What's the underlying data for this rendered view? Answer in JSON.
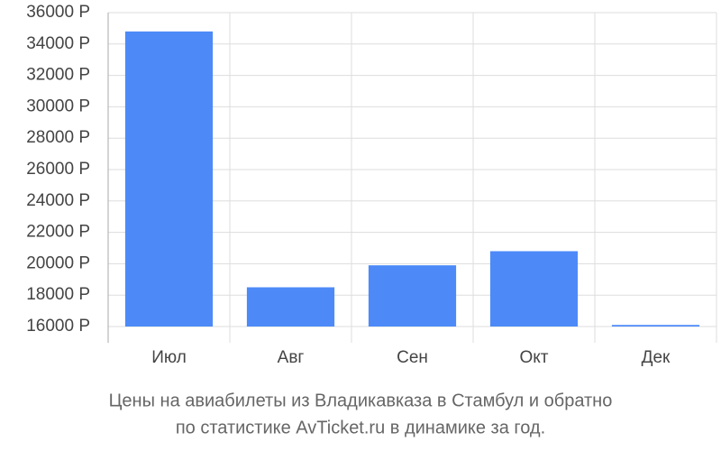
{
  "chart_data": {
    "type": "bar",
    "caption": [
      "Цены на авиабилеты из Владикавказа в Стамбул и обратно",
      "по статистике AvTicket.ru в динамике за год."
    ],
    "categories": [
      "Июл",
      "Авг",
      "Сен",
      "Окт",
      "Дек"
    ],
    "values": [
      34800,
      18500,
      19900,
      20800,
      16100
    ],
    "color": "#4d8af8",
    "ylim": [
      16000,
      36000
    ],
    "yticks": [
      {
        "value": 16000,
        "label": "16000 Р"
      },
      {
        "value": 18000,
        "label": "18000 Р"
      },
      {
        "value": 20000,
        "label": "20000 Р"
      },
      {
        "value": 22000,
        "label": "22000 Р"
      },
      {
        "value": 24000,
        "label": "24000 Р"
      },
      {
        "value": 26000,
        "label": "26000 Р"
      },
      {
        "value": 28000,
        "label": "28000 Р"
      },
      {
        "value": 30000,
        "label": "30000 Р"
      },
      {
        "value": 32000,
        "label": "32000 Р"
      },
      {
        "value": 34000,
        "label": "34000 Р"
      },
      {
        "value": 36000,
        "label": "36000 Р"
      }
    ],
    "grid": true
  }
}
